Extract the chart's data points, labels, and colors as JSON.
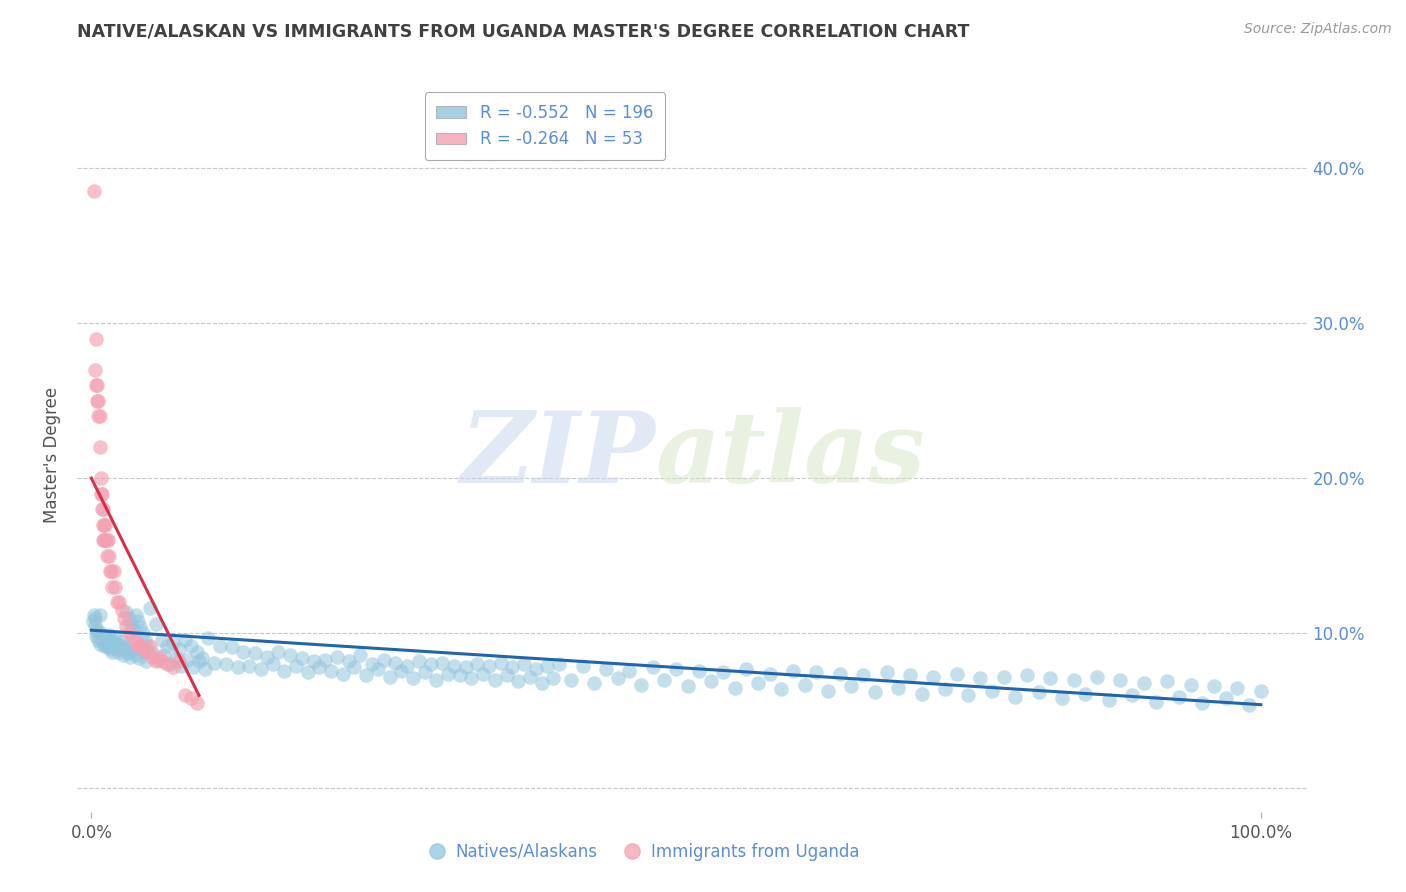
{
  "title": "NATIVE/ALASKAN VS IMMIGRANTS FROM UGANDA MASTER'S DEGREE CORRELATION CHART",
  "source": "Source: ZipAtlas.com",
  "ylabel": "Master's Degree",
  "watermark_zip": "ZIP",
  "watermark_atlas": "atlas",
  "blue_R": "-0.552",
  "blue_N": "196",
  "pink_R": "-0.264",
  "pink_N": "53",
  "blue_color": "#92c5de",
  "pink_color": "#f4a0b0",
  "blue_line_color": "#2166ac",
  "pink_line_color": "#d6304a",
  "grid_color": "#c8c8c8",
  "title_color": "#404040",
  "right_axis_color": "#5b8dd9",
  "source_color": "#999999",
  "background_color": "#ffffff",
  "blue_x": [
    0.001,
    0.002,
    0.003,
    0.004,
    0.005,
    0.006,
    0.007,
    0.008,
    0.009,
    0.01,
    0.011,
    0.012,
    0.013,
    0.014,
    0.015,
    0.016,
    0.017,
    0.018,
    0.019,
    0.02,
    0.022,
    0.024,
    0.026,
    0.028,
    0.03,
    0.032,
    0.034,
    0.036,
    0.038,
    0.04,
    0.042,
    0.044,
    0.046,
    0.048,
    0.05,
    0.055,
    0.06,
    0.065,
    0.07,
    0.075,
    0.08,
    0.085,
    0.09,
    0.095,
    0.1,
    0.11,
    0.12,
    0.13,
    0.14,
    0.15,
    0.16,
    0.17,
    0.18,
    0.19,
    0.2,
    0.21,
    0.22,
    0.23,
    0.24,
    0.25,
    0.26,
    0.27,
    0.28,
    0.29,
    0.3,
    0.31,
    0.32,
    0.33,
    0.34,
    0.35,
    0.36,
    0.37,
    0.38,
    0.39,
    0.4,
    0.42,
    0.44,
    0.46,
    0.48,
    0.5,
    0.52,
    0.54,
    0.56,
    0.58,
    0.6,
    0.62,
    0.64,
    0.66,
    0.68,
    0.7,
    0.72,
    0.74,
    0.76,
    0.78,
    0.8,
    0.82,
    0.84,
    0.86,
    0.88,
    0.9,
    0.92,
    0.94,
    0.96,
    0.98,
    1.0,
    0.003,
    0.005,
    0.007,
    0.009,
    0.011,
    0.013,
    0.015,
    0.017,
    0.019,
    0.021,
    0.023,
    0.025,
    0.027,
    0.029,
    0.031,
    0.033,
    0.035,
    0.038,
    0.041,
    0.044,
    0.047,
    0.052,
    0.057,
    0.062,
    0.067,
    0.072,
    0.077,
    0.082,
    0.087,
    0.092,
    0.097,
    0.105,
    0.115,
    0.125,
    0.135,
    0.145,
    0.155,
    0.165,
    0.175,
    0.185,
    0.195,
    0.205,
    0.215,
    0.225,
    0.235,
    0.245,
    0.255,
    0.265,
    0.275,
    0.285,
    0.295,
    0.305,
    0.315,
    0.325,
    0.335,
    0.345,
    0.355,
    0.365,
    0.375,
    0.385,
    0.395,
    0.41,
    0.43,
    0.45,
    0.47,
    0.49,
    0.51,
    0.53,
    0.55,
    0.57,
    0.59,
    0.61,
    0.63,
    0.65,
    0.67,
    0.69,
    0.71,
    0.73,
    0.75,
    0.77,
    0.79,
    0.81,
    0.83,
    0.85,
    0.87,
    0.89,
    0.91,
    0.93,
    0.95,
    0.97,
    0.99
  ],
  "blue_y": [
    0.108,
    0.112,
    0.105,
    0.098,
    0.102,
    0.096,
    0.093,
    0.1,
    0.097,
    0.095,
    0.092,
    0.098,
    0.094,
    0.091,
    0.099,
    0.096,
    0.092,
    0.088,
    0.094,
    0.097,
    0.093,
    0.09,
    0.095,
    0.092,
    0.114,
    0.11,
    0.106,
    0.103,
    0.112,
    0.108,
    0.104,
    0.1,
    0.096,
    0.092,
    0.116,
    0.106,
    0.096,
    0.092,
    0.094,
    0.09,
    0.096,
    0.092,
    0.088,
    0.084,
    0.097,
    0.092,
    0.091,
    0.088,
    0.087,
    0.085,
    0.088,
    0.086,
    0.084,
    0.082,
    0.083,
    0.085,
    0.082,
    0.086,
    0.08,
    0.083,
    0.081,
    0.079,
    0.082,
    0.08,
    0.081,
    0.079,
    0.078,
    0.08,
    0.079,
    0.081,
    0.078,
    0.08,
    0.077,
    0.079,
    0.08,
    0.079,
    0.077,
    0.076,
    0.078,
    0.077,
    0.076,
    0.075,
    0.077,
    0.074,
    0.076,
    0.075,
    0.074,
    0.073,
    0.075,
    0.073,
    0.072,
    0.074,
    0.071,
    0.072,
    0.073,
    0.071,
    0.07,
    0.072,
    0.07,
    0.068,
    0.069,
    0.067,
    0.066,
    0.065,
    0.063,
    0.11,
    0.1,
    0.112,
    0.095,
    0.098,
    0.092,
    0.095,
    0.09,
    0.094,
    0.091,
    0.088,
    0.092,
    0.086,
    0.09,
    0.087,
    0.085,
    0.089,
    0.086,
    0.084,
    0.088,
    0.082,
    0.087,
    0.083,
    0.086,
    0.08,
    0.084,
    0.079,
    0.083,
    0.078,
    0.082,
    0.077,
    0.081,
    0.08,
    0.078,
    0.079,
    0.077,
    0.08,
    0.076,
    0.079,
    0.075,
    0.078,
    0.076,
    0.074,
    0.078,
    0.073,
    0.077,
    0.072,
    0.076,
    0.071,
    0.075,
    0.07,
    0.074,
    0.073,
    0.071,
    0.074,
    0.07,
    0.073,
    0.069,
    0.072,
    0.068,
    0.071,
    0.07,
    0.068,
    0.071,
    0.067,
    0.07,
    0.066,
    0.069,
    0.065,
    0.068,
    0.064,
    0.067,
    0.063,
    0.066,
    0.062,
    0.065,
    0.061,
    0.064,
    0.06,
    0.063,
    0.059,
    0.062,
    0.058,
    0.061,
    0.057,
    0.06,
    0.056,
    0.059,
    0.055,
    0.058,
    0.054
  ],
  "pink_x": [
    0.002,
    0.003,
    0.004,
    0.004,
    0.005,
    0.005,
    0.006,
    0.006,
    0.007,
    0.007,
    0.008,
    0.008,
    0.009,
    0.009,
    0.01,
    0.01,
    0.01,
    0.011,
    0.011,
    0.012,
    0.012,
    0.013,
    0.013,
    0.014,
    0.015,
    0.016,
    0.017,
    0.018,
    0.019,
    0.02,
    0.022,
    0.024,
    0.026,
    0.028,
    0.03,
    0.032,
    0.035,
    0.038,
    0.04,
    0.042,
    0.045,
    0.048,
    0.05,
    0.052,
    0.055,
    0.058,
    0.06,
    0.065,
    0.07,
    0.075,
    0.08,
    0.085,
    0.09
  ],
  "pink_y": [
    0.385,
    0.27,
    0.29,
    0.26,
    0.25,
    0.26,
    0.24,
    0.25,
    0.24,
    0.22,
    0.19,
    0.2,
    0.19,
    0.18,
    0.18,
    0.17,
    0.16,
    0.17,
    0.16,
    0.17,
    0.16,
    0.16,
    0.15,
    0.16,
    0.15,
    0.14,
    0.14,
    0.13,
    0.14,
    0.13,
    0.12,
    0.12,
    0.115,
    0.11,
    0.105,
    0.1,
    0.098,
    0.095,
    0.092,
    0.092,
    0.09,
    0.088,
    0.092,
    0.085,
    0.082,
    0.085,
    0.082,
    0.08,
    0.078,
    0.082,
    0.06,
    0.058,
    0.055
  ],
  "blue_trendline_x": [
    0.0,
    1.0
  ],
  "blue_trendline_y": [
    0.102,
    0.054
  ],
  "pink_trendline_x": [
    0.0,
    0.092
  ],
  "pink_trendline_y": [
    0.2,
    0.06
  ],
  "xlim": [
    -0.012,
    1.04
  ],
  "ylim": [
    -0.015,
    0.445
  ],
  "yticks": [
    0.0,
    0.1,
    0.2,
    0.3,
    0.4
  ]
}
